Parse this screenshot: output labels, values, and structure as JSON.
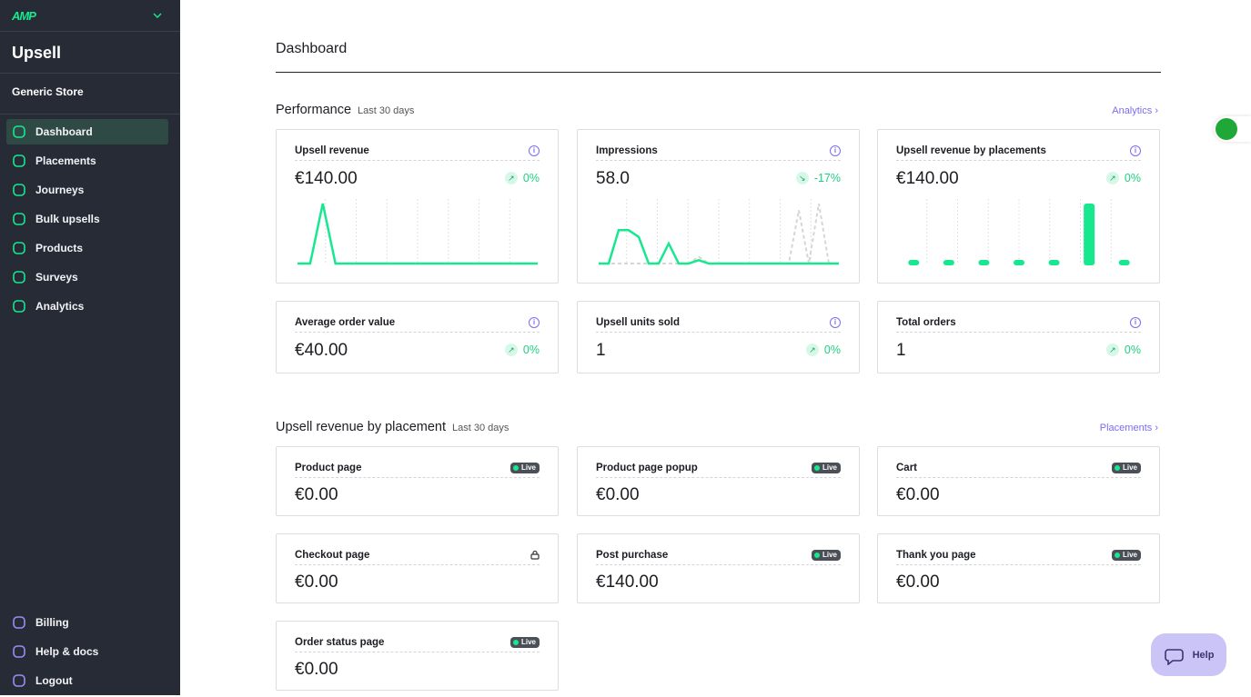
{
  "sidebar": {
    "brand": "AMP",
    "app": "Upsell",
    "store": "Generic Store",
    "nav": [
      "Dashboard",
      "Placements",
      "Journeys",
      "Bulk upsells",
      "Products",
      "Surveys",
      "Analytics"
    ],
    "active": "Dashboard",
    "footer_nav": [
      "Billing",
      "Help & docs",
      "Logout"
    ]
  },
  "header": {
    "title": "Dashboard"
  },
  "performance": {
    "title": "Performance",
    "period": "Last 30 days",
    "link": "Analytics",
    "cards": [
      {
        "title": "Upsell revenue",
        "value": "€140.00",
        "trend": "up",
        "change": "0%",
        "chart": {
          "type": "line",
          "series": [
            {
              "color": "#17e88f",
              "dashed": false,
              "values": [
                0,
                0,
                140,
                0,
                0,
                0,
                0,
                0,
                0,
                0,
                0,
                0,
                0,
                0,
                0,
                0,
                0,
                0,
                0,
                0
              ]
            }
          ]
        }
      },
      {
        "title": "Impressions",
        "value": "58.0",
        "trend": "down",
        "change": "-17%",
        "chart": {
          "type": "line",
          "series": [
            {
              "color": "#d6d6d6",
              "dashed": true,
              "values": [
                0,
                0,
                0,
                0,
                0,
                0,
                0,
                0,
                0,
                0,
                2,
                0,
                0,
                0,
                0,
                0,
                0,
                0,
                0,
                0,
                16,
                0,
                18,
                0,
                0
              ]
            },
            {
              "color": "#17e88f",
              "dashed": false,
              "values": [
                0,
                0,
                10,
                10,
                8,
                0,
                0,
                6,
                0,
                0,
                1,
                0,
                0,
                0,
                0,
                0,
                0,
                0,
                0,
                0,
                0,
                0,
                0,
                0,
                0
              ]
            }
          ]
        }
      },
      {
        "title": "Upsell revenue by placements",
        "value": "€140.00",
        "trend": "up",
        "change": "0%",
        "chart": {
          "type": "bar",
          "series": [
            {
              "color": "#17e88f",
              "dashed": false,
              "values": [
                0,
                0,
                0,
                0,
                0,
                140,
                0
              ]
            }
          ]
        }
      },
      {
        "title": "Average order value",
        "value": "€40.00",
        "trend": "up",
        "change": "0%"
      },
      {
        "title": "Upsell units sold",
        "value": "1",
        "trend": "up",
        "change": "0%"
      },
      {
        "title": "Total orders",
        "value": "1",
        "trend": "up",
        "change": "0%"
      }
    ]
  },
  "placements": {
    "title": "Upsell revenue by placement",
    "period": "Last 30 days",
    "link": "Placements",
    "cards": [
      {
        "title": "Product page",
        "value": "€0.00",
        "status": "Live"
      },
      {
        "title": "Product page popup",
        "value": "€0.00",
        "status": "Live"
      },
      {
        "title": "Cart",
        "value": "€0.00",
        "status": "Live"
      },
      {
        "title": "Checkout page",
        "value": "€0.00",
        "locked": true
      },
      {
        "title": "Post purchase",
        "value": "€140.00",
        "status": "Live"
      },
      {
        "title": "Thank you page",
        "value": "€0.00",
        "status": "Live"
      },
      {
        "title": "Order status page",
        "value": "€0.00",
        "status": "Live"
      }
    ]
  },
  "help": "Help"
}
